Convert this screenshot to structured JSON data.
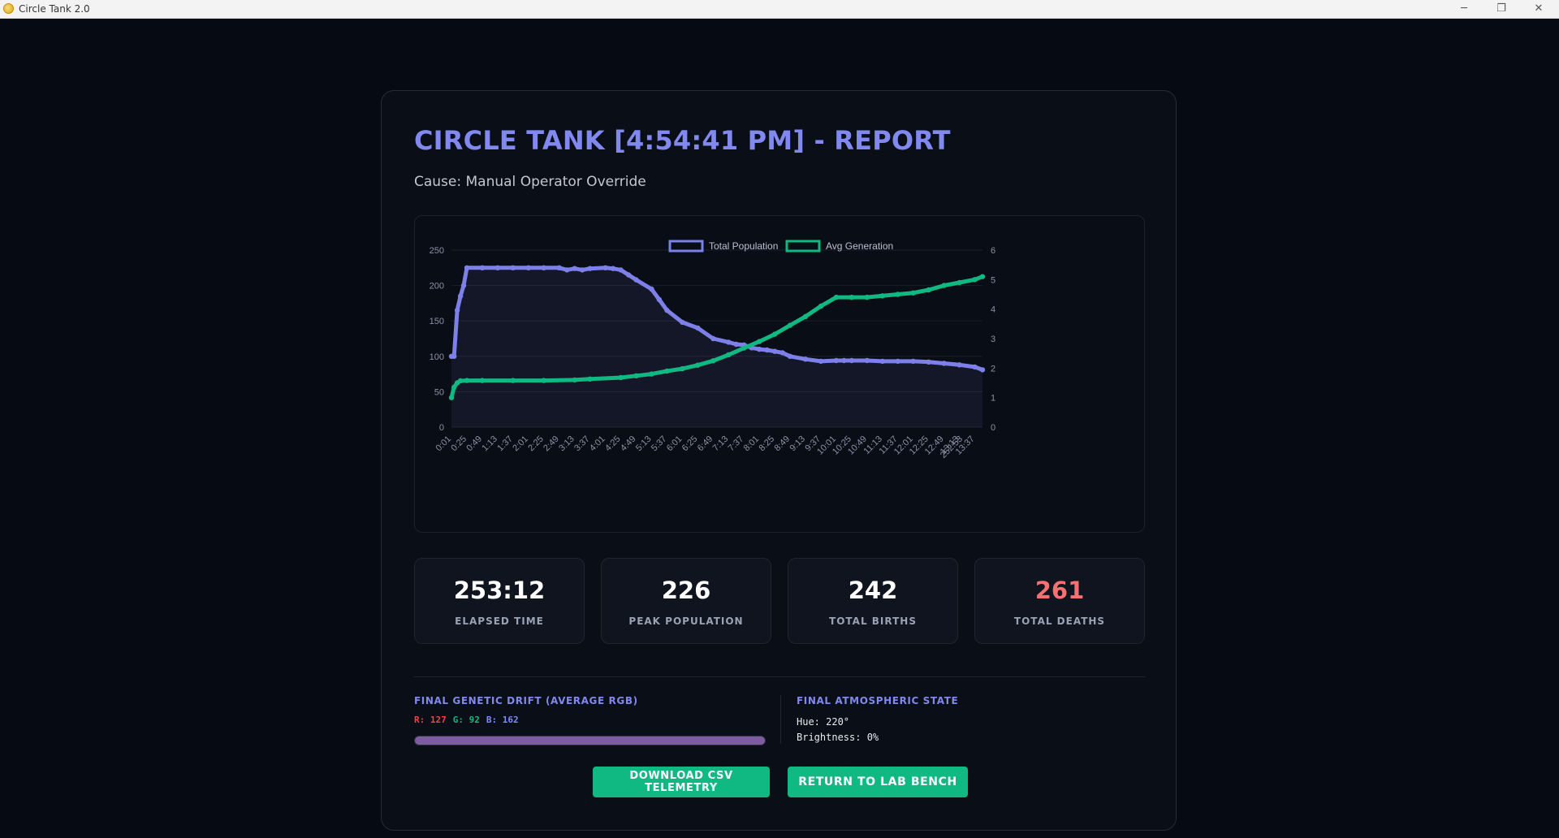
{
  "window": {
    "title": "Circle Tank 2.0",
    "controls": {
      "minimize": "─",
      "maximize": "❐",
      "close": "✕"
    }
  },
  "report": {
    "title": "CIRCLE TANK [4:54:41 PM] - REPORT",
    "cause": "Cause: Manual Operator Override"
  },
  "chart_data": {
    "type": "line",
    "legend": [
      "Total Population",
      "Avg Generation"
    ],
    "legend_position": "top-center",
    "grid": true,
    "x_tick_labels": [
      "0:01",
      "0:25",
      "0:49",
      "1:13",
      "1:37",
      "2:01",
      "2:25",
      "2:49",
      "3:13",
      "3:37",
      "4:01",
      "4:25",
      "4:49",
      "5:13",
      "5:37",
      "6:01",
      "6:25",
      "6:49",
      "7:13",
      "7:37",
      "8:01",
      "8:25",
      "8:49",
      "9:13",
      "9:37",
      "10:01",
      "10:25",
      "10:49",
      "11:13",
      "11:37",
      "12:01",
      "12:25",
      "12:49",
      "13:13",
      "13:37",
      "252:53"
    ],
    "y_left": {
      "ticks": [
        0,
        50,
        100,
        150,
        200,
        250
      ],
      "range": [
        0,
        250
      ]
    },
    "y_right": {
      "ticks": [
        0,
        1,
        2,
        3,
        4,
        5,
        6
      ],
      "range": [
        0,
        6
      ]
    },
    "series": [
      {
        "name": "Total Population",
        "axis": "left",
        "color": "#7c80e8",
        "fill": true,
        "x": [
          "0:01",
          "0:05",
          "0:10",
          "0:15",
          "0:20",
          "0:25",
          "0:49",
          "1:13",
          "1:37",
          "2:01",
          "2:25",
          "2:49",
          "3:01",
          "3:13",
          "3:25",
          "3:37",
          "4:01",
          "4:13",
          "4:25",
          "4:37",
          "4:49",
          "5:13",
          "5:25",
          "5:37",
          "6:01",
          "6:25",
          "6:49",
          "7:13",
          "7:25",
          "7:37",
          "7:49",
          "8:01",
          "8:13",
          "8:25",
          "8:37",
          "8:49",
          "9:13",
          "9:37",
          "10:01",
          "10:13",
          "10:25",
          "10:49",
          "11:13",
          "11:37",
          "12:01",
          "12:25",
          "12:49",
          "13:13",
          "13:37",
          "252:53"
        ],
        "values": [
          100,
          100,
          165,
          185,
          200,
          225,
          225,
          225,
          225,
          225,
          225,
          225,
          222,
          224,
          222,
          224,
          225,
          224,
          222,
          215,
          208,
          195,
          180,
          165,
          148,
          140,
          125,
          120,
          117,
          116,
          112,
          110,
          109,
          107,
          105,
          100,
          96,
          93,
          94,
          94,
          94,
          94,
          93,
          93,
          93,
          92,
          90,
          88,
          85,
          81
        ]
      },
      {
        "name": "Avg Generation",
        "axis": "right",
        "color": "#10b981",
        "fill": false,
        "x": [
          "0:01",
          "0:05",
          "0:10",
          "0:15",
          "0:25",
          "0:49",
          "1:37",
          "2:25",
          "3:13",
          "3:37",
          "4:25",
          "4:49",
          "5:13",
          "5:37",
          "6:01",
          "6:25",
          "6:49",
          "7:13",
          "7:37",
          "8:01",
          "8:25",
          "8:49",
          "9:13",
          "9:37",
          "10:01",
          "10:25",
          "10:49",
          "11:13",
          "11:37",
          "12:01",
          "12:25",
          "12:49",
          "13:13",
          "13:37",
          "252:53"
        ],
        "values": [
          1.0,
          1.35,
          1.5,
          1.57,
          1.58,
          1.58,
          1.58,
          1.58,
          1.6,
          1.63,
          1.68,
          1.74,
          1.8,
          1.9,
          1.98,
          2.1,
          2.25,
          2.45,
          2.68,
          2.9,
          3.15,
          3.45,
          3.75,
          4.1,
          4.4,
          4.4,
          4.4,
          4.45,
          4.5,
          4.55,
          4.65,
          4.8,
          4.9,
          5.0,
          5.1
        ]
      }
    ]
  },
  "stats": [
    {
      "value": "253:12",
      "label": "ELAPSED TIME",
      "color": "#ffffff"
    },
    {
      "value": "226",
      "label": "PEAK POPULATION",
      "color": "#ffffff"
    },
    {
      "value": "242",
      "label": "TOTAL BIRTHS",
      "color": "#ffffff"
    },
    {
      "value": "261",
      "label": "TOTAL DEATHS",
      "color": "#f87171"
    }
  ],
  "genetics": {
    "title": "FINAL GENETIC DRIFT (AVERAGE RGB)",
    "r": "R: 127",
    "g": "G: 92",
    "b": "B: 162",
    "swatch_color": "#7f5ca2"
  },
  "atmosphere": {
    "title": "FINAL ATMOSPHERIC STATE",
    "hue": "Hue: 220°",
    "brightness": "Brightness: 0%"
  },
  "buttons": {
    "download": "DOWNLOAD CSV TELEMETRY",
    "return": "RETURN TO LAB BENCH"
  },
  "colors": {
    "accent": "#8188f0",
    "button": "#10b981",
    "deaths": "#f87171",
    "r": "#ef4444",
    "g": "#10b981",
    "b": "#818cf8"
  }
}
